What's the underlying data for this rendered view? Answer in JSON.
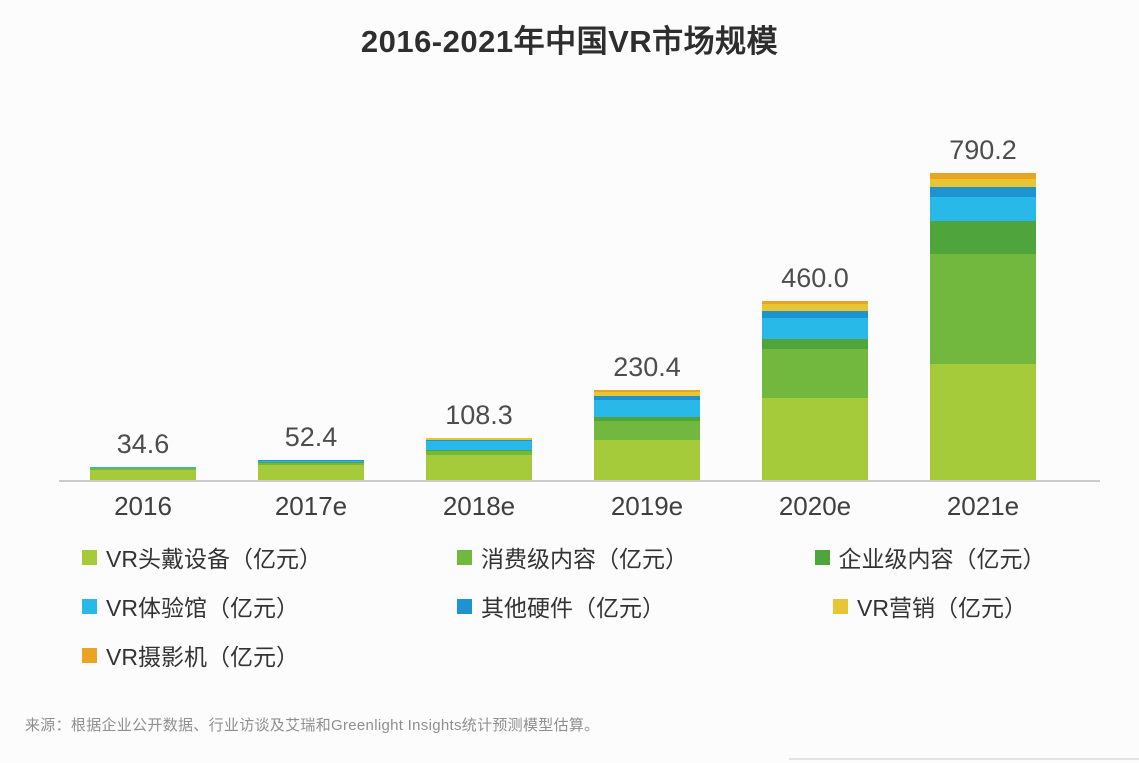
{
  "page": {
    "title": "2016-2021年中国VR市场规模",
    "source_note": "来源：根据企业公开数据、行业访谈及艾瑞和Greenlight Insights统计预测模型估算。"
  },
  "chart_data": {
    "type": "bar",
    "stacked": true,
    "title": "2016-2021年中国VR市场规模",
    "unit": "亿元",
    "categories": [
      "2016",
      "2017e",
      "2018e",
      "2019e",
      "2020e",
      "2021e"
    ],
    "totals": [
      34.6,
      52.4,
      108.3,
      230.4,
      460.0,
      790.2
    ],
    "total_labels": [
      "34.6",
      "52.4",
      "108.3",
      "230.4",
      "460.0",
      "790.2"
    ],
    "series": [
      {
        "key": "vr-headset",
        "name": "VR头戴设备（亿元）",
        "color": "#a5cb3a",
        "values": [
          26,
          38,
          64,
          104,
          210,
          298
        ]
      },
      {
        "key": "consumer-content",
        "name": "消费级内容（亿元）",
        "color": "#72b83f",
        "values": [
          4.5,
          5.5,
          10,
          48,
          126,
          282
        ]
      },
      {
        "key": "enterprise-content",
        "name": "企业级内容（亿元）",
        "color": "#4fa43c",
        "values": [
          1.2,
          2,
          3,
          10,
          26,
          85
        ]
      },
      {
        "key": "vr-experience-hall",
        "name": "VR体验馆（亿元）",
        "color": "#28b9e9",
        "values": [
          1.5,
          4.5,
          24,
          45,
          55,
          62
        ]
      },
      {
        "key": "other-hardware",
        "name": "其他硬件（亿元）",
        "color": "#1e93d1",
        "values": [
          0.6,
          1.2,
          3,
          8,
          17,
          26
        ]
      },
      {
        "key": "vr-marketing",
        "name": "VR营销（亿元）",
        "color": "#e8c633",
        "values": [
          0.5,
          0.8,
          3.5,
          12,
          18,
          20
        ]
      },
      {
        "key": "vr-camera",
        "name": "VR摄影机（亿元）",
        "color": "#e9a425",
        "values": [
          0.3,
          0.4,
          0.8,
          3.4,
          8,
          17.2
        ]
      }
    ],
    "ylim": [
      0,
      900
    ],
    "grid": false,
    "axis_line_color": "#cbcbcb",
    "legend_position": "bottom",
    "value_labels": "above bars"
  }
}
